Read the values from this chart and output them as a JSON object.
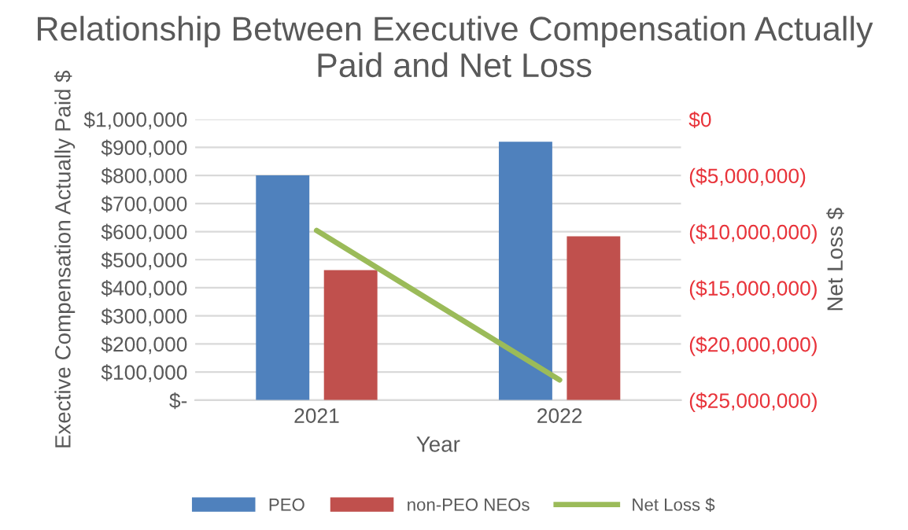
{
  "chart_data": {
    "type": "bar",
    "title": "Relationship Between Executive Compensation Actually Paid and Net Loss",
    "xlabel": "Year",
    "ylabel": "Exective Compensation Actually Paid $",
    "y2label": "Net Loss $",
    "categories": [
      "2021",
      "2022"
    ],
    "series": [
      {
        "name": "PEO",
        "color": "#4f81bd",
        "values": [
          800000,
          920000
        ]
      },
      {
        "name": "non-PEO NEOs",
        "color": "#c0504d",
        "values": [
          463000,
          583000
        ]
      },
      {
        "name": "Net Loss $",
        "color": "#9bbb59",
        "type": "line",
        "axis": "y2",
        "values": [
          -9900000,
          -23200000
        ]
      }
    ],
    "ylim": [
      0,
      1000000
    ],
    "yticks": [
      {
        "value": 0,
        "label": "$-"
      },
      {
        "value": 100000,
        "label": "$100,000"
      },
      {
        "value": 200000,
        "label": "$200,000"
      },
      {
        "value": 300000,
        "label": "$300,000"
      },
      {
        "value": 400000,
        "label": "$400,000"
      },
      {
        "value": 500000,
        "label": "$500,000"
      },
      {
        "value": 600000,
        "label": "$600,000"
      },
      {
        "value": 700000,
        "label": "$700,000"
      },
      {
        "value": 800000,
        "label": "$800,000"
      },
      {
        "value": 900000,
        "label": "$900,000"
      },
      {
        "value": 1000000,
        "label": "$1,000,000"
      }
    ],
    "y2lim": [
      -25000000,
      0
    ],
    "y2ticks": [
      {
        "value": -25000000,
        "label": "($25,000,000)"
      },
      {
        "value": -20000000,
        "label": "($20,000,000)"
      },
      {
        "value": -15000000,
        "label": "($15,000,000)"
      },
      {
        "value": -10000000,
        "label": "($10,000,000)"
      },
      {
        "value": -5000000,
        "label": "($5,000,000)"
      },
      {
        "value": 0,
        "label": "$0"
      }
    ],
    "grid": "y",
    "legend": "bottom"
  }
}
